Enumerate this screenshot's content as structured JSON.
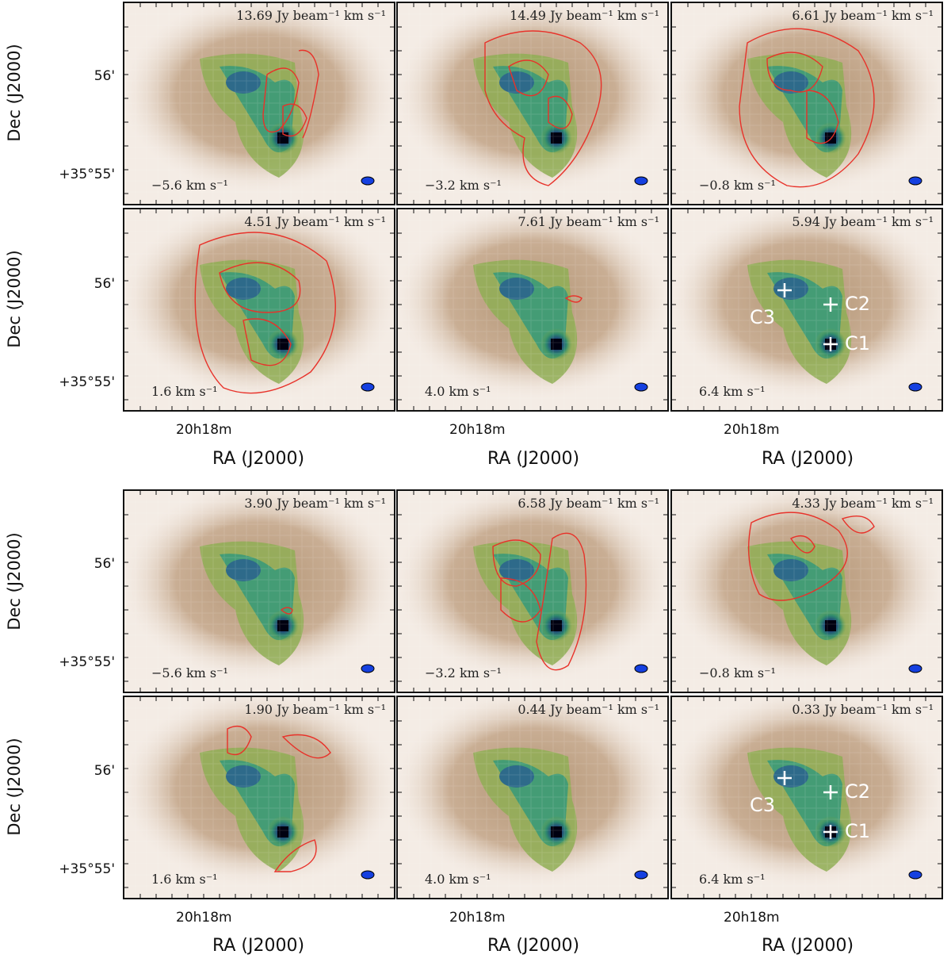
{
  "figure": {
    "x_axis_label": "RA (J2000)",
    "y_axis_label": "Dec (J2000)",
    "x_tick": "20h18m",
    "y_tick_upper": "56'",
    "y_tick_lower": "+35°55'",
    "source_labels": [
      "C1",
      "C2",
      "C3"
    ],
    "colors": {
      "contour": "#e8322a",
      "beam": "#1540e0",
      "marker": "#ffffff"
    }
  },
  "chart_data": [
    {
      "type": "heatmap",
      "group": "top",
      "title": "13.69 Jy beam⁻¹ km s⁻¹",
      "velocity": "−5.6 km s⁻¹"
    },
    {
      "type": "heatmap",
      "group": "top",
      "title": "14.49 Jy beam⁻¹ km s⁻¹",
      "velocity": "−3.2 km s⁻¹"
    },
    {
      "type": "heatmap",
      "group": "top",
      "title": "6.61 Jy beam⁻¹ km s⁻¹",
      "velocity": "−0.8 km s⁻¹"
    },
    {
      "type": "heatmap",
      "group": "top",
      "title": "4.51 Jy beam⁻¹ km s⁻¹",
      "velocity": "1.6 km s⁻¹"
    },
    {
      "type": "heatmap",
      "group": "top",
      "title": "7.61 Jy beam⁻¹ km s⁻¹",
      "velocity": "4.0 km s⁻¹"
    },
    {
      "type": "heatmap",
      "group": "top",
      "title": "5.94 Jy beam⁻¹ km s⁻¹",
      "velocity": "6.4 km s⁻¹",
      "markers": [
        "C1",
        "C2",
        "C3"
      ]
    },
    {
      "type": "heatmap",
      "group": "bottom",
      "title": "3.90 Jy beam⁻¹ km s⁻¹",
      "velocity": "−5.6 km s⁻¹"
    },
    {
      "type": "heatmap",
      "group": "bottom",
      "title": "6.58 Jy beam⁻¹ km s⁻¹",
      "velocity": "−3.2 km s⁻¹"
    },
    {
      "type": "heatmap",
      "group": "bottom",
      "title": "4.33 Jy beam⁻¹ km s⁻¹",
      "velocity": "−0.8 km s⁻¹"
    },
    {
      "type": "heatmap",
      "group": "bottom",
      "title": "1.90 Jy beam⁻¹ km s⁻¹",
      "velocity": "1.6 km s⁻¹"
    },
    {
      "type": "heatmap",
      "group": "bottom",
      "title": "0.44 Jy beam⁻¹ km s⁻¹",
      "velocity": "4.0 km s⁻¹"
    },
    {
      "type": "heatmap",
      "group": "bottom",
      "title": "0.33 Jy beam⁻¹ km s⁻¹",
      "velocity": "6.4 km s⁻¹",
      "markers": [
        "C1",
        "C2",
        "C3"
      ]
    }
  ]
}
